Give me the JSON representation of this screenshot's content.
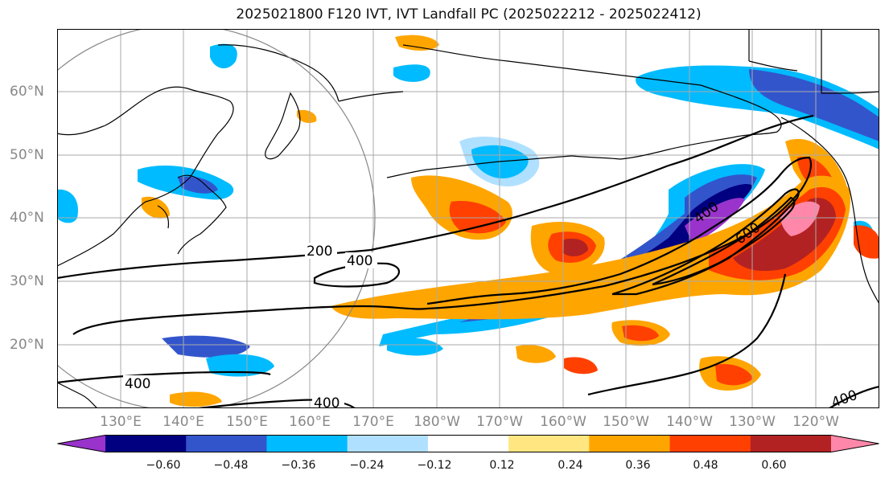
{
  "title": "2025021800 F120 IVT, IVT Landfall PC (2025022212 - 2025022412)",
  "lat_labels": [
    "60°N",
    "50°N",
    "40°N",
    "30°N",
    "20°N"
  ],
  "lon_labels": [
    "130°E",
    "140°E",
    "150°E",
    "160°E",
    "170°E",
    "180°W",
    "170°W",
    "160°W",
    "150°W",
    "140°W",
    "130°W",
    "120°W"
  ],
  "contour_labels": [
    "200",
    "400",
    "400",
    "400",
    "400",
    "600",
    "400"
  ],
  "colorbar": {
    "ticks": [
      "−0.60",
      "−0.48",
      "−0.36",
      "−0.24",
      "−0.12",
      "0.12",
      "0.24",
      "0.36",
      "0.48",
      "0.60"
    ],
    "colors": [
      "#9933cc",
      "#000080",
      "#3355cc",
      "#00bbff",
      "#b0e0ff",
      "#ffffff",
      "#ffe680",
      "#ffa500",
      "#ff4000",
      "#b22222",
      "#ff88aa"
    ]
  },
  "colors": {
    "neg_strong": "#9933cc",
    "neg_dark": "#000080",
    "neg_mid": "#3355cc",
    "neg_light": "#00bbff",
    "neg_pale": "#b0e0ff",
    "pos_pale": "#ffe680",
    "pos_light": "#ffa500",
    "pos_mid": "#ff4000",
    "pos_dark": "#b22222",
    "pos_strong": "#ff88aa"
  }
}
